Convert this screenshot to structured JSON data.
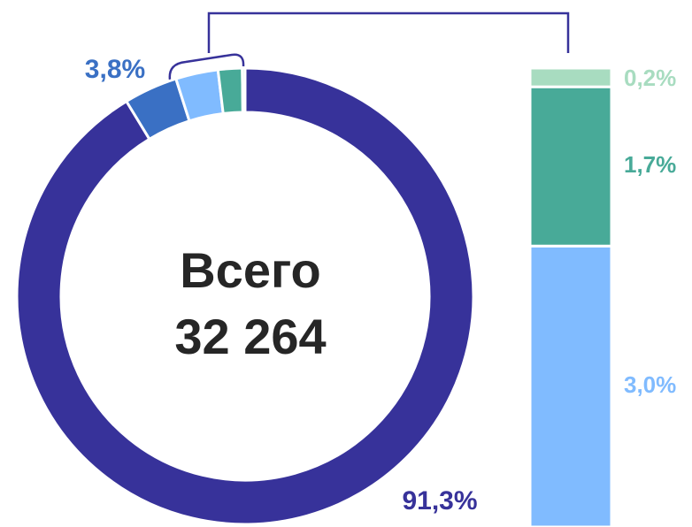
{
  "chart_data": [
    {
      "type": "pie",
      "donut": true,
      "center_title": "Всего",
      "center_value": "32 264",
      "values": [
        91.3,
        3.8,
        3.0,
        1.7,
        0.2
      ],
      "value_labels": [
        "91,3%",
        "3,8%",
        null,
        null,
        null
      ],
      "colors": [
        "#37329a",
        "#3a70c4",
        "#80bbff",
        "#48aa98",
        "#a8dcc0"
      ]
    },
    {
      "type": "bar",
      "stacked": true,
      "values": [
        3.0,
        1.7,
        0.2
      ],
      "value_labels": [
        "3,0%",
        "1,7%",
        "0,2%"
      ],
      "colors": [
        "#80bbff",
        "#48aa98",
        "#a8dcc0"
      ]
    }
  ]
}
